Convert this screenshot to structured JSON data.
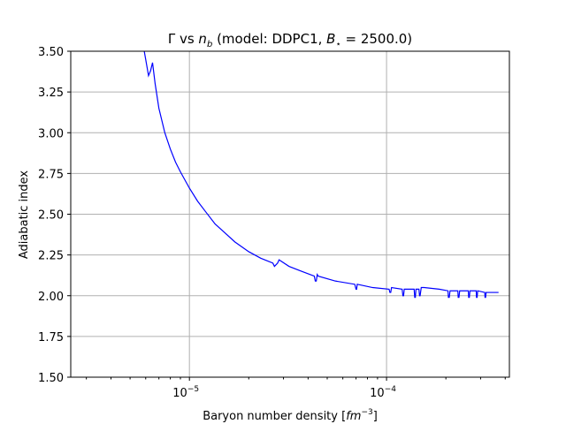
{
  "chart_data": {
    "type": "line",
    "title": "Γ vs n_b (model: DDPC1, B_* = 2500.0)",
    "title_parts": {
      "prefix": "Γ vs ",
      "nb_main": "n",
      "nb_sub": "b",
      "model": " (model: DDPC1, ",
      "b_main": "B",
      "b_sub": "⋆",
      "b_value": " = 2500.0)"
    },
    "xlabel": "Baryon number density [fm⁻³]",
    "xlabel_parts": {
      "prefix": "Baryon number density [",
      "unit": "fm",
      "exp": "−3",
      "suffix": "]"
    },
    "ylabel": "Adiabatic index",
    "x_scale": "log",
    "xlim": [
      2.5e-06,
      0.00042
    ],
    "ylim": [
      1.5,
      3.5
    ],
    "grid": true,
    "line_color": "#0000ff",
    "x_ticks": [
      {
        "value": 1e-05,
        "base": "10",
        "exp": "−5"
      },
      {
        "value": 0.0001,
        "base": "10",
        "exp": "−4"
      }
    ],
    "y_ticks": [
      {
        "value": 1.5,
        "label": "1.50"
      },
      {
        "value": 1.75,
        "label": "1.75"
      },
      {
        "value": 2.0,
        "label": "2.00"
      },
      {
        "value": 2.25,
        "label": "2.25"
      },
      {
        "value": 2.5,
        "label": "2.50"
      },
      {
        "value": 2.75,
        "label": "2.75"
      },
      {
        "value": 3.0,
        "label": "3.00"
      },
      {
        "value": 3.25,
        "label": "3.25"
      },
      {
        "value": 3.5,
        "label": "3.50"
      }
    ],
    "series": [
      {
        "x": [
          5.9e-06,
          6e-06,
          6.1e-06,
          6.2e-06,
          6.35e-06,
          6.5e-06,
          6.7e-06,
          7e-06,
          7.5e-06,
          8e-06,
          8.5e-06,
          9e-06,
          1e-05,
          1.1e-05,
          1.2e-05,
          1.35e-05,
          1.5e-05,
          1.7e-05,
          2e-05,
          2.3e-05,
          2.65e-05,
          2.7e-05,
          2.75e-05,
          2.8e-05,
          2.85e-05,
          3.2e-05,
          3.7e-05,
          4.3e-05,
          4.35e-05,
          4.4e-05,
          4.45e-05,
          4.5e-05,
          5.5e-05,
          6.9e-05,
          7e-05,
          7.05e-05,
          7.1e-05,
          8.5e-05,
          0.000103,
          0.000104,
          0.000105,
          0.000106,
          0.00012,
          0.000121,
          0.000122,
          0.000123,
          0.000138,
          0.000139,
          0.00014,
          0.000141,
          0.000146,
          0.000147,
          0.000148,
          0.00015,
          0.000155,
          0.000185,
          0.000205,
          0.000206,
          0.000208,
          0.00021,
          0.00023,
          0.000231,
          0.000233,
          0.000235,
          0.00026,
          0.000261,
          0.000263,
          0.000265,
          0.000285,
          0.000286,
          0.000288,
          0.00029,
          0.000315,
          0.000316,
          0.000318,
          0.00032,
          0.00034,
          0.00037
        ],
        "y": [
          3.5,
          3.45,
          3.4,
          3.35,
          3.38,
          3.43,
          3.3,
          3.15,
          3.0,
          2.9,
          2.82,
          2.76,
          2.66,
          2.58,
          2.52,
          2.44,
          2.39,
          2.33,
          2.27,
          2.23,
          2.2,
          2.18,
          2.19,
          2.2,
          2.22,
          2.18,
          2.15,
          2.12,
          2.09,
          2.09,
          2.13,
          2.12,
          2.09,
          2.07,
          2.04,
          2.04,
          2.07,
          2.05,
          2.04,
          2.02,
          2.02,
          2.05,
          2.04,
          2.0,
          2.0,
          2.04,
          2.04,
          1.99,
          1.99,
          2.04,
          2.04,
          2.0,
          2.0,
          2.05,
          2.05,
          2.04,
          2.03,
          1.99,
          1.99,
          2.03,
          2.03,
          1.99,
          1.99,
          2.03,
          2.03,
          1.99,
          1.99,
          2.03,
          2.03,
          1.99,
          1.99,
          2.03,
          2.02,
          1.99,
          1.99,
          2.02,
          2.02,
          2.02
        ]
      }
    ]
  }
}
